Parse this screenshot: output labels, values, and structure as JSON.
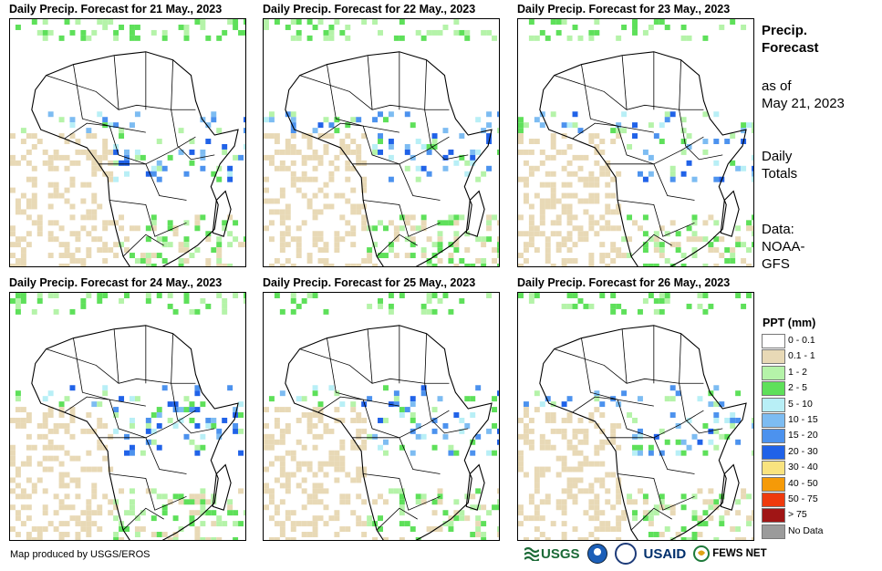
{
  "panels": [
    {
      "title": "Daily Precip. Forecast for 21 May., 2023"
    },
    {
      "title": "Daily Precip. Forecast for 22 May., 2023"
    },
    {
      "title": "Daily Precip. Forecast for 23 May., 2023"
    },
    {
      "title": "Daily Precip. Forecast for 24 May., 2023"
    },
    {
      "title": "Daily Precip. Forecast for 25 May., 2023"
    },
    {
      "title": "Daily Precip. Forecast for 26 May., 2023"
    }
  ],
  "sidebar": {
    "heading_line1": "Precip.",
    "heading_line2": "Forecast",
    "asof_line1": "as of",
    "asof_line2": "May 21, 2023",
    "totals_line1": "Daily",
    "totals_line2": "Totals",
    "data_line1": "Data:",
    "data_line2": "NOAA-",
    "data_line3": "GFS"
  },
  "legend": {
    "title": "PPT (mm)",
    "items": [
      {
        "label": "0 - 0.1",
        "color": "#ffffff"
      },
      {
        "label": "0.1 - 1",
        "color": "#e8d9b6"
      },
      {
        "label": "1 - 2",
        "color": "#b5f3a9"
      },
      {
        "label": "2 - 5",
        "color": "#5ee05a"
      },
      {
        "label": "5 - 10",
        "color": "#b8eff6"
      },
      {
        "label": "10 - 15",
        "color": "#7dbcf2"
      },
      {
        "label": "15 - 20",
        "color": "#4c92ee"
      },
      {
        "label": "20 - 30",
        "color": "#2062e8"
      },
      {
        "label": "30 - 40",
        "color": "#f9e37f"
      },
      {
        "label": "40 - 50",
        "color": "#f59a08"
      },
      {
        "label": "50 - 75",
        "color": "#ee3a0d"
      },
      {
        "label": "> 75",
        "color": "#a01515"
      },
      {
        "label": "No Data",
        "color": "#9b9b9b"
      }
    ]
  },
  "footer": {
    "credit": "Map produced by USGS/EROS",
    "logos": {
      "usgs": "USGS",
      "usaid": "USAID",
      "fews": "FEWS NET"
    }
  }
}
